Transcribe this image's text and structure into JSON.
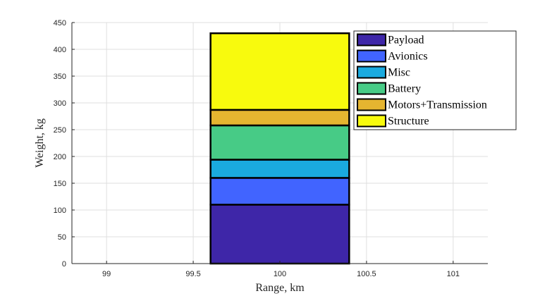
{
  "chart_data": {
    "type": "bar",
    "stacked": true,
    "x": 100,
    "xlabel": "Range, km",
    "ylabel": "Weight, kg",
    "xlim": [
      98.8,
      101.2
    ],
    "ylim": [
      0,
      450
    ],
    "xticks": [
      99,
      99.5,
      100,
      100.5,
      101
    ],
    "xtick_labels": [
      "99",
      "99.5",
      "100",
      "100.5",
      "101"
    ],
    "yticks": [
      0,
      50,
      100,
      150,
      200,
      250,
      300,
      350,
      400,
      450
    ],
    "bar_width": 0.8,
    "grid": true,
    "legend_position": "top-right",
    "series": [
      {
        "name": "Payload",
        "value": 110,
        "color": "#3E26A8"
      },
      {
        "name": "Avionics",
        "value": 50,
        "color": "#4164FF"
      },
      {
        "name": "Misc",
        "value": 34,
        "color": "#1AAADF"
      },
      {
        "name": "Battery",
        "value": 64,
        "color": "#47CB86"
      },
      {
        "name": "Motors+Transmission",
        "value": 29,
        "color": "#E5B530"
      },
      {
        "name": "Structure",
        "value": 143,
        "color": "#F8FA0D"
      }
    ]
  }
}
